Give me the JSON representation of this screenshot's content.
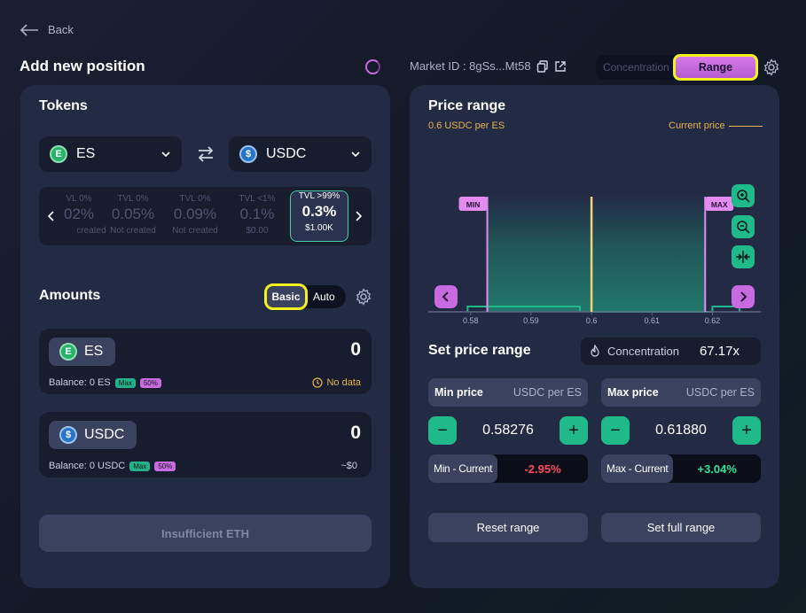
{
  "nav": {
    "back_label": "Back"
  },
  "page": {
    "title": "Add new position"
  },
  "market": {
    "label": "Market ID : 8gSs...Mt58"
  },
  "mode": {
    "concentration_label": "Concentration",
    "range_label": "Range"
  },
  "tokens": {
    "title": "Tokens",
    "token_a": "ES",
    "token_b": "USDC",
    "fee_tiers": [
      {
        "tvl": "VL 0%",
        "fee": "02%",
        "status": "created"
      },
      {
        "tvl": "TVL 0%",
        "fee": "0.05%",
        "status": "Not created"
      },
      {
        "tvl": "TVL 0%",
        "fee": "0.09%",
        "status": "Not created"
      },
      {
        "tvl": "TVL <1%",
        "fee": "0.1%",
        "status": "$0.00"
      },
      {
        "tvl": "TVL >99%",
        "fee": "0.3%",
        "status": "$1.00K"
      }
    ]
  },
  "amounts": {
    "title": "Amounts",
    "basic_label": "Basic",
    "auto_label": "Auto",
    "token_a": {
      "symbol": "ES",
      "value": "0",
      "balance": "Balance: 0 ES",
      "max": "Max",
      "half": "50%",
      "right": "No data"
    },
    "token_b": {
      "symbol": "USDC",
      "value": "0",
      "balance": "Balance: 0 USDC",
      "max": "Max",
      "half": "50%",
      "right": "~$0"
    }
  },
  "submit": {
    "label": "Insufficient ETH"
  },
  "price_range": {
    "title": "Price range",
    "current_value": "0.6 USDC per ES",
    "current_label": "Current price",
    "min_tag": "MIN",
    "max_tag": "MAX",
    "set_title": "Set price range",
    "concentration_label": "Concentration",
    "concentration_value": "67.17x",
    "min": {
      "label": "Min price",
      "unit": "USDC per ES",
      "value": "0.58276",
      "delta_label": "Min - Current",
      "delta": "-2.95%"
    },
    "max": {
      "label": "Max price",
      "unit": "USDC per ES",
      "value": "0.61880",
      "delta_label": "Max - Current",
      "delta": "+3.04%"
    },
    "reset_label": "Reset range",
    "full_label": "Set full range"
  },
  "chart_data": {
    "type": "area",
    "x_ticks": [
      "0.58",
      "0.59",
      "0.6",
      "0.61",
      "0.62"
    ],
    "xlim": [
      0.573,
      0.628
    ],
    "current_price": 0.6,
    "min_price": 0.58276,
    "max_price": 0.6188,
    "colors": {
      "range_fill": "#1f8f78",
      "min_max": "#e28cf0",
      "current": "#f1d27a"
    }
  }
}
